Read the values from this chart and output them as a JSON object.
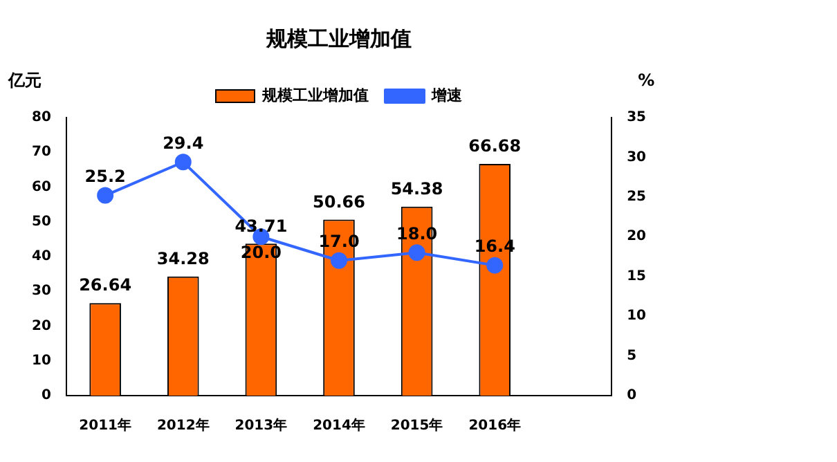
{
  "chart_data": {
    "type": "bar",
    "title": "规模工业增加值",
    "ylabel": "亿元",
    "y2label": "%",
    "categories": [
      "2011年",
      "2012年",
      "2013年",
      "2014年",
      "2015年",
      "2016年",
      null
    ],
    "series": [
      {
        "name": "规模工业增加值",
        "color": "#ff6600",
        "values": [
          26.64,
          34.28,
          43.71,
          50.66,
          54.38,
          66.68,
          null
        ]
      },
      {
        "name": "增速",
        "type": "line",
        "axis": "y2",
        "color": "#3366ff",
        "marker": "circle",
        "values": [
          25.2,
          29.4,
          20.0,
          17.0,
          18.0,
          16.4,
          null
        ],
        "value_labels": [
          "25.2",
          "29.4",
          "20.0",
          "17.0",
          "18.0",
          "16.4",
          null
        ]
      }
    ],
    "ylim": [
      0,
      80
    ],
    "yticks": [
      0,
      10,
      20,
      30,
      40,
      50,
      60,
      70,
      80
    ],
    "y2lim": [
      0,
      35
    ],
    "y2ticks": [
      0,
      5,
      10,
      15,
      20,
      25,
      30,
      35
    ],
    "data_labels": true,
    "grid": false,
    "legend": "top"
  }
}
